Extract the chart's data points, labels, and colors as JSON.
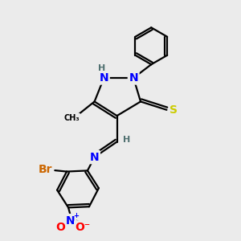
{
  "background_color": "#ebebeb",
  "atom_colors": {
    "N": "#0000ff",
    "H": "#507070",
    "S": "#cccc00",
    "Br": "#cc6600",
    "O": "#ff0000",
    "C": "#000000"
  },
  "bond_color": "#000000",
  "bond_width": 1.6,
  "font_size_atom": 10,
  "font_size_small": 8
}
